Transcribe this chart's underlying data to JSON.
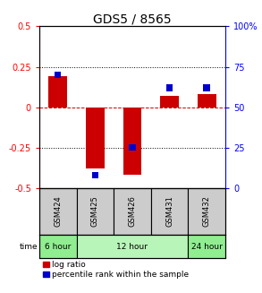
{
  "title": "GDS5 / 8565",
  "samples": [
    "GSM424",
    "GSM425",
    "GSM426",
    "GSM431",
    "GSM432"
  ],
  "log_ratio": [
    0.19,
    -0.38,
    -0.42,
    0.07,
    0.08
  ],
  "percentile_rank": [
    70,
    8,
    25,
    62,
    62
  ],
  "ylim_left": [
    -0.5,
    0.5
  ],
  "ylim_right": [
    0,
    100
  ],
  "yticks_left": [
    -0.5,
    -0.25,
    0,
    0.25,
    0.5
  ],
  "yticks_right": [
    0,
    25,
    50,
    75,
    100
  ],
  "time_groups": [
    {
      "label": "6 hour",
      "samples": [
        "GSM424"
      ],
      "color": "#90ee90"
    },
    {
      "label": "12 hour",
      "samples": [
        "GSM425",
        "GSM426",
        "GSM431"
      ],
      "color": "#b8f5b8"
    },
    {
      "label": "24 hour",
      "samples": [
        "GSM432"
      ],
      "color": "#90ee90"
    }
  ],
  "bar_color_red": "#cc0000",
  "bar_color_blue": "#0000cc",
  "red_bar_width": 0.5,
  "blue_bar_width": 0.18,
  "blue_bar_height": 0.04,
  "background_color": "#ffffff",
  "zero_line_color": "#cc0000",
  "zero_line_style": "--",
  "dotted_line_color": "#000000",
  "sample_box_color": "#cccccc",
  "title_fontsize": 10,
  "tick_fontsize": 7,
  "legend_fontsize": 6.5
}
